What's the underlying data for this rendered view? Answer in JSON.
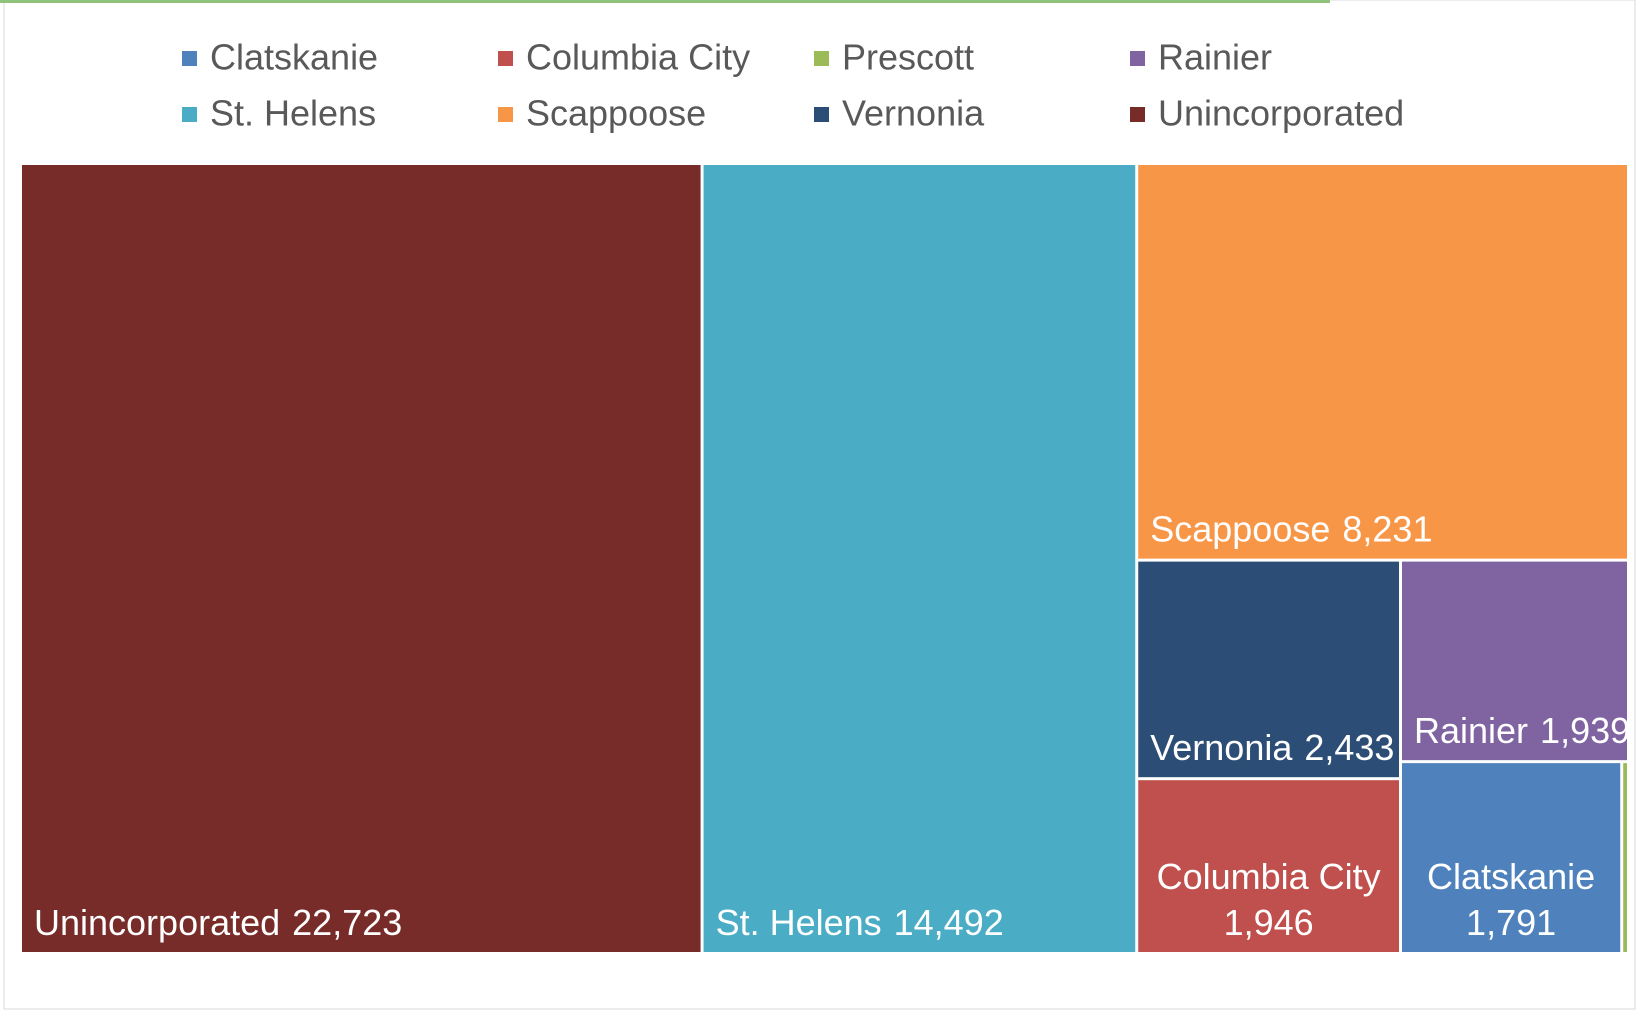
{
  "chart_data": {
    "type": "treemap",
    "categories": [
      "Clatskanie",
      "Columbia City",
      "Prescott",
      "Rainier",
      "St. Helens",
      "Scappoose",
      "Vernonia",
      "Unincorporated"
    ],
    "values": [
      1791,
      1946,
      55,
      1939,
      14492,
      8231,
      2433,
      22723
    ],
    "value_labels": [
      "1,791",
      "1,946",
      null,
      "1,939",
      "14,492",
      "8,231",
      "2,433",
      "22,723"
    ],
    "colors": [
      "#4f81bd",
      "#c0504d",
      "#9bbb59",
      "#8064a2",
      "#4bacc6",
      "#f79646",
      "#2c4d75",
      "#772c2a"
    ]
  }
}
